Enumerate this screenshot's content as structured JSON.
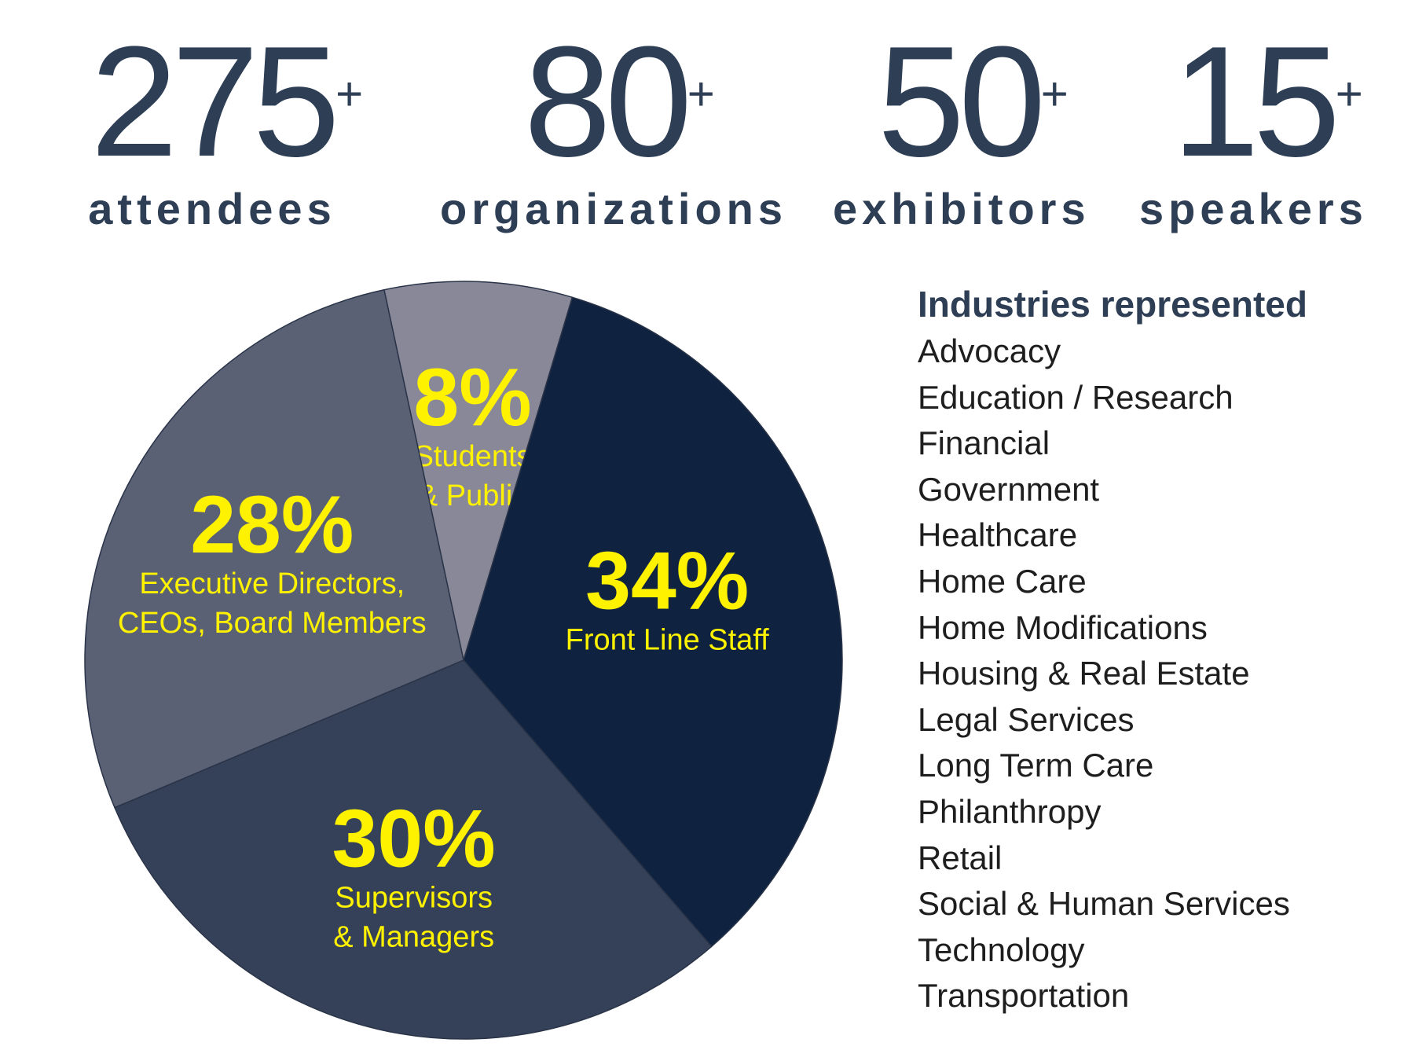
{
  "stats": [
    {
      "number": "275",
      "plus": "+",
      "label": "attendees"
    },
    {
      "number": "80",
      "plus": "+",
      "label": "organizations"
    },
    {
      "number": "50",
      "plus": "+",
      "label": "exhibitors"
    },
    {
      "number": "15",
      "plus": "+",
      "label": "speakers"
    }
  ],
  "industries": {
    "title": "Industries represented",
    "items": [
      "Advocacy",
      "Education / Research",
      "Financial",
      "Government",
      "Healthcare",
      "Home Care",
      "Home Modifications",
      "Housing & Real Estate",
      "Legal Services",
      "Long Term Care",
      "Philanthropy",
      "Retail",
      "Social & Human Services",
      "Technology",
      "Transportation"
    ]
  },
  "chart_data": {
    "type": "pie",
    "title": "",
    "label_color": "#fff200",
    "slices": [
      {
        "label": "8%",
        "value": 8,
        "caption": [
          "Students",
          "& Public"
        ],
        "color": "#888898"
      },
      {
        "label": "34%",
        "value": 34,
        "caption": [
          "Front Line Staff"
        ],
        "color": "#0f2340"
      },
      {
        "label": "30%",
        "value": 30,
        "caption": [
          "Supervisors",
          "& Managers"
        ],
        "color": "#354158"
      },
      {
        "label": "28%",
        "value": 28,
        "caption": [
          "Executive Directors,",
          "CEOs, Board Members"
        ],
        "color": "#5a6175"
      }
    ]
  }
}
